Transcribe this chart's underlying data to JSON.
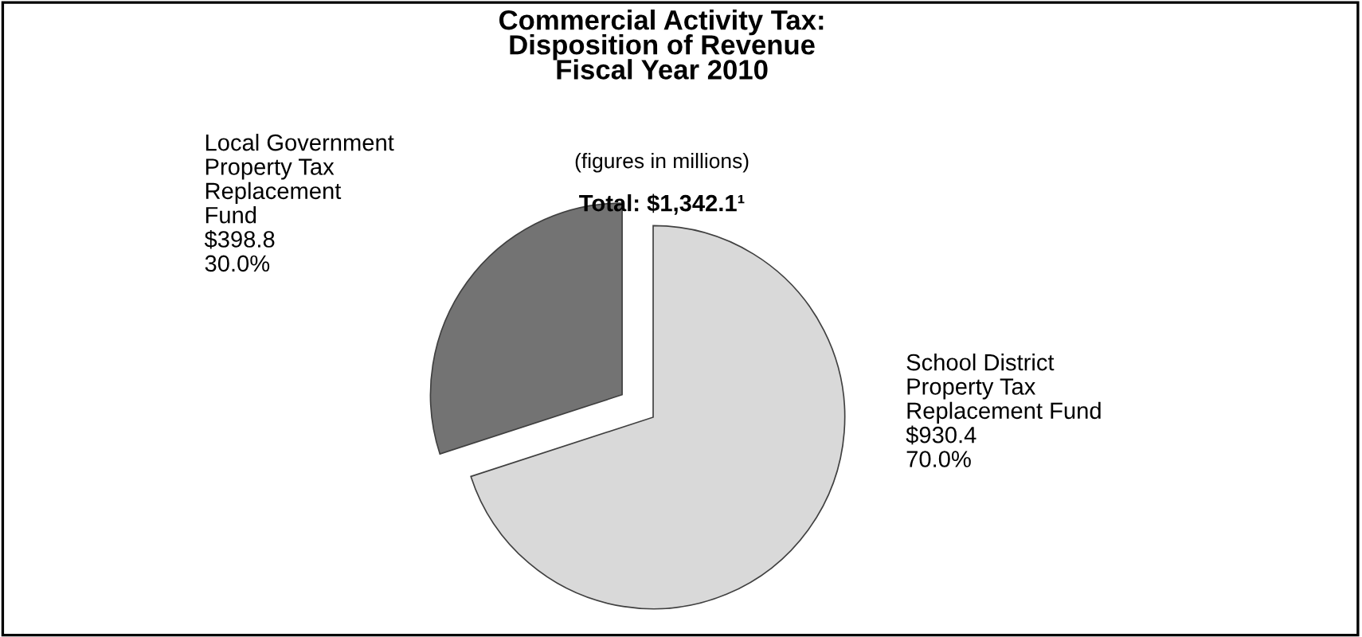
{
  "chart_data": {
    "type": "pie",
    "title": "Commercial Activity Tax:\nDisposition of Revenue\nFiscal Year 2010",
    "subtitle": "(figures in millions)",
    "annotations": [
      "Total: $1,342.1¹"
    ],
    "categories": [
      "Local Government\nProperty Tax\nReplacement\nFund",
      "School District\nProperty Tax\nReplacement Fund"
    ],
    "values": [
      398.8,
      930.4
    ],
    "value_labels": [
      "$398.8\n30.0%",
      "$930.4\n70.0%"
    ],
    "colors": [
      "#737373",
      "#d9d9d9"
    ]
  }
}
